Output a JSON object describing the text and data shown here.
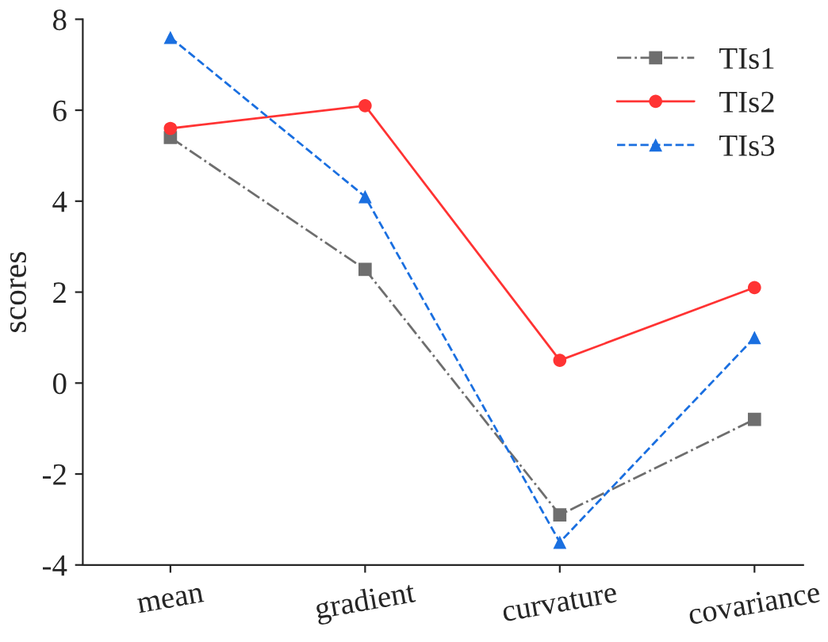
{
  "chart_data": {
    "type": "line",
    "ylabel": "scores",
    "categories": [
      "mean",
      "gradient",
      "curvature",
      "covariance"
    ],
    "series": [
      {
        "name": "TIs1",
        "color": "#6e6e6e",
        "marker": "square",
        "line_style": "dashdot",
        "values": [
          5.4,
          2.5,
          -2.9,
          -0.8
        ]
      },
      {
        "name": "TIs2",
        "color": "#ff3333",
        "marker": "circle",
        "line_style": "solid",
        "values": [
          5.6,
          6.1,
          0.5,
          2.1
        ]
      },
      {
        "name": "TIs3",
        "color": "#1a6fe0",
        "marker": "triangle",
        "line_style": "dashed",
        "values": [
          7.6,
          4.1,
          -3.5,
          1.0
        ]
      }
    ],
    "ylim": [
      -4,
      8
    ],
    "yticks": [
      {
        "value": -4,
        "label": "-4"
      },
      {
        "value": -2,
        "label": "-2"
      },
      0,
      2,
      4,
      6,
      8
    ],
    "grid": false,
    "legend": "top right"
  }
}
